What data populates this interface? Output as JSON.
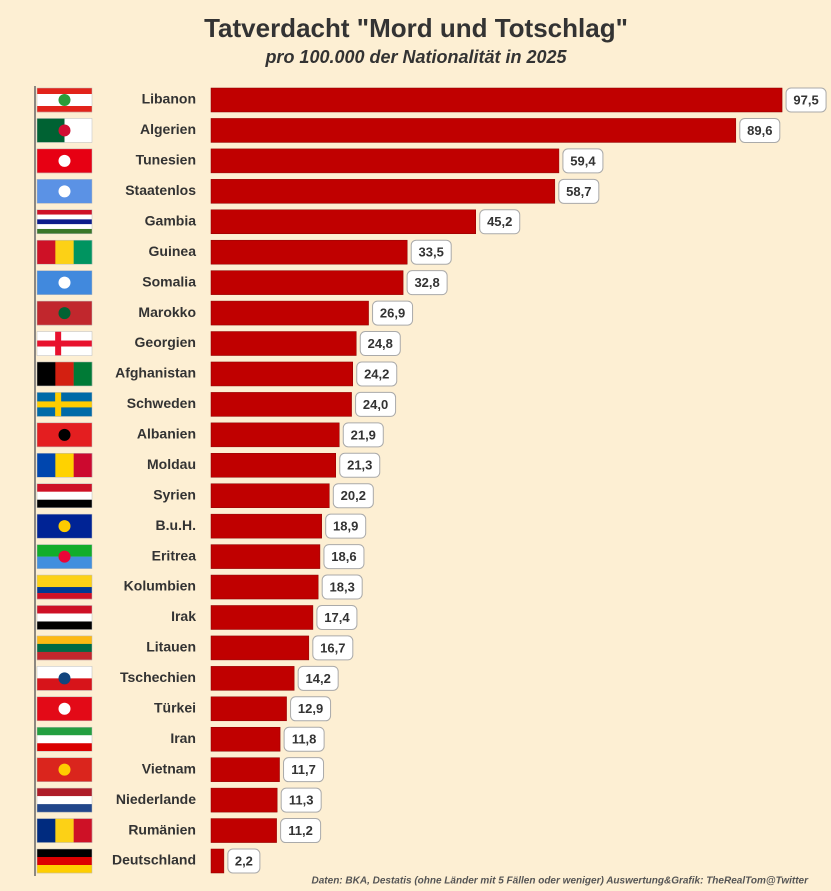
{
  "chart_data": {
    "type": "bar",
    "orientation": "horizontal",
    "title": "Tatverdacht \"Mord und Totschlag\"",
    "subtitle": "pro 100.000 der Nationalität in 2025",
    "categories": [
      "Libanon",
      "Algerien",
      "Tunesien",
      "Staatenlos",
      "Gambia",
      "Guinea",
      "Somalia",
      "Marokko",
      "Georgien",
      "Afghanistan",
      "Schweden",
      "Albanien",
      "Moldau",
      "Syrien",
      "B.u.H.",
      "Eritrea",
      "Kolumbien",
      "Irak",
      "Litauen",
      "Tschechien",
      "Türkei",
      "Iran",
      "Vietnam",
      "Niederlande",
      "Rumänien",
      "Deutschland"
    ],
    "values": [
      97.5,
      89.6,
      59.4,
      58.7,
      45.2,
      33.5,
      32.8,
      26.9,
      24.8,
      24.2,
      24.0,
      21.9,
      21.3,
      20.2,
      18.9,
      18.6,
      18.3,
      17.4,
      16.7,
      14.2,
      12.9,
      11.8,
      11.7,
      11.3,
      11.2,
      2.2
    ],
    "value_labels": [
      "97,5",
      "89,6",
      "59,4",
      "58,7",
      "45,2",
      "33,5",
      "32,8",
      "26,9",
      "24,8",
      "24,2",
      "24,0",
      "21,9",
      "21,3",
      "20,2",
      "18,9",
      "18,6",
      "18,3",
      "17,4",
      "16,7",
      "14,2",
      "12,9",
      "11,8",
      "11,7",
      "11,3",
      "11,2",
      "2,2"
    ],
    "color": "#c00000",
    "xlim": [
      0,
      105
    ],
    "source": "Daten: BKA, Destatis (ohne Länder mit 5 Fällen oder weniger)  Auswertung&Grafik: TheRealTom@Twitter"
  }
}
